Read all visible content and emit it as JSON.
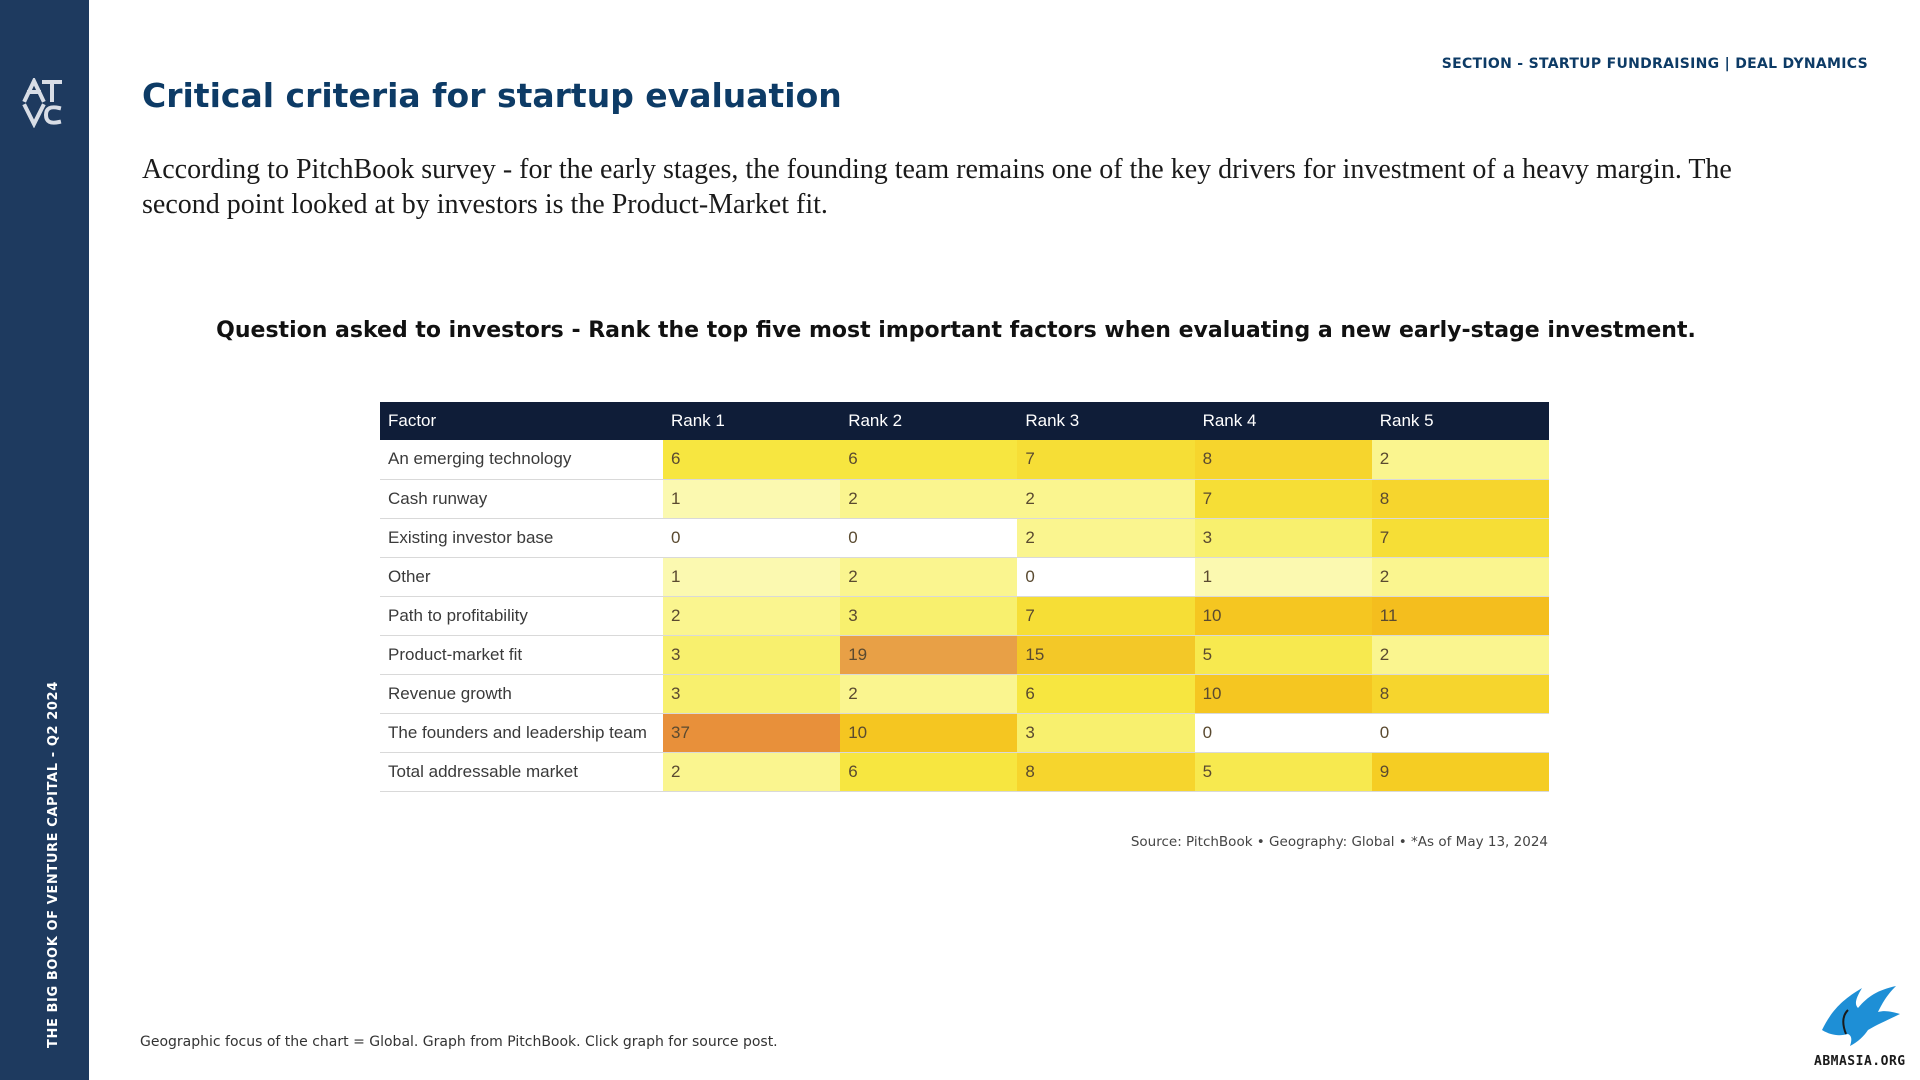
{
  "sidebar": {
    "logo_text": "ATVC",
    "vertical_text": "THE BIG BOOK OF VENTURE CAPITAL - Q2 2024"
  },
  "header": {
    "section_label": "SECTION - STARTUP FUNDRAISING | DEAL DYNAMICS",
    "title": "Critical criteria for startup evaluation"
  },
  "intro": "According to PitchBook survey - for the early stages, the founding team remains one of the key drivers for investment of a heavy margin. The second point looked at by investors is the Product-Market fit.",
  "question": "Question asked to investors - Rank the top five most important factors when evaluating a new early-stage investment.",
  "chart_data": {
    "type": "heatmap",
    "columns": [
      "Factor",
      "Rank 1",
      "Rank 2",
      "Rank 3",
      "Rank 4",
      "Rank 5"
    ],
    "rows": [
      {
        "factor": "An emerging technology",
        "values": [
          6,
          6,
          7,
          8,
          2
        ]
      },
      {
        "factor": "Cash runway",
        "values": [
          1,
          2,
          2,
          7,
          8
        ]
      },
      {
        "factor": "Existing investor base",
        "values": [
          0,
          0,
          2,
          3,
          7
        ]
      },
      {
        "factor": "Other",
        "values": [
          1,
          2,
          0,
          1,
          2
        ]
      },
      {
        "factor": "Path to profitability",
        "values": [
          2,
          3,
          7,
          10,
          11
        ]
      },
      {
        "factor": "Product-market fit",
        "values": [
          3,
          19,
          15,
          5,
          2
        ]
      },
      {
        "factor": "Revenue growth",
        "values": [
          3,
          2,
          6,
          10,
          8
        ]
      },
      {
        "factor": "The founders and leadership team",
        "values": [
          37,
          10,
          3,
          0,
          0
        ]
      },
      {
        "factor": "Total addressable market",
        "values": [
          2,
          6,
          8,
          5,
          9
        ]
      }
    ],
    "color_scale": [
      "#ffffff",
      "#fbf9b0",
      "#f7e640",
      "#f5c518",
      "#e8903a"
    ]
  },
  "source": "Source: PitchBook  •  Geography: Global  •  *As of May 13, 2024",
  "footnote": "Geographic focus of the chart = Global. Graph from PitchBook. Click graph for source post.",
  "watermark": {
    "text": "ABMASIA.ORG",
    "icon": "eagle-icon",
    "color": "#1e8fd6"
  }
}
